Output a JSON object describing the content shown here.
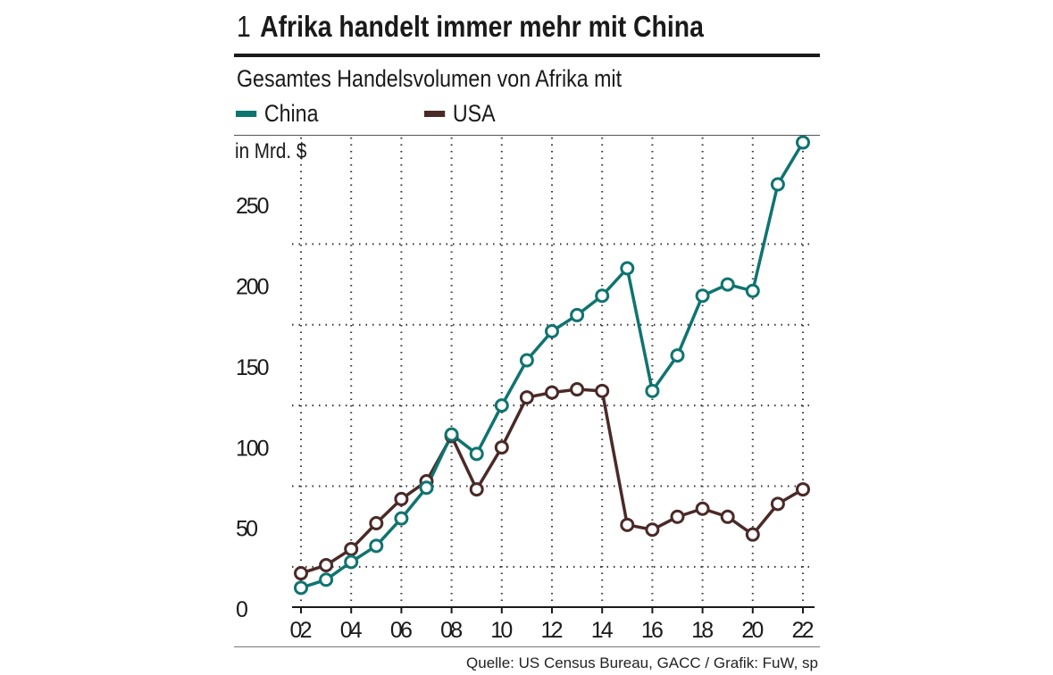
{
  "header": {
    "number": "1",
    "title": "Afrika handelt immer mehr mit China",
    "subtitle": "Gesamtes Handelsvolumen von Afrika mit"
  },
  "source": "Quelle: US Census Bureau, GACC  / Grafik: FuW, sp",
  "colors": {
    "china": "#0f7470",
    "usa": "#4a2a28",
    "grid": "#333333"
  },
  "chart_data": {
    "type": "line",
    "title": "Afrika handelt immer mehr mit China",
    "subtitle": "Gesamtes Handelsvolumen von Afrika mit",
    "ylabel": "in Mrd. $",
    "xlabel": "",
    "x": [
      2002,
      2003,
      2004,
      2005,
      2006,
      2007,
      2008,
      2009,
      2010,
      2011,
      2012,
      2013,
      2014,
      2015,
      2016,
      2017,
      2018,
      2019,
      2020,
      2021,
      2022
    ],
    "x_tick_values": [
      2002,
      2004,
      2006,
      2008,
      2010,
      2012,
      2014,
      2016,
      2018,
      2020,
      2022
    ],
    "x_tick_labels": [
      "02",
      "04",
      "06",
      "08",
      "10",
      "12",
      "14",
      "16",
      "18",
      "20",
      "22"
    ],
    "y_ticks": [
      0,
      50,
      100,
      150,
      200,
      250
    ],
    "ylim": [
      0,
      280
    ],
    "series": [
      {
        "name": "China",
        "values": [
          12,
          17,
          28,
          38,
          55,
          74,
          107,
          95,
          125,
          153,
          171,
          181,
          193,
          210,
          134,
          156,
          193,
          200,
          196,
          262,
          288
        ]
      },
      {
        "name": "USA",
        "values": [
          21,
          26,
          36,
          52,
          67,
          78,
          106,
          73,
          99,
          130,
          133,
          135,
          134,
          51,
          48,
          56,
          61,
          56,
          45,
          64,
          73
        ]
      }
    ],
    "grid": true,
    "legend": "top-left"
  }
}
